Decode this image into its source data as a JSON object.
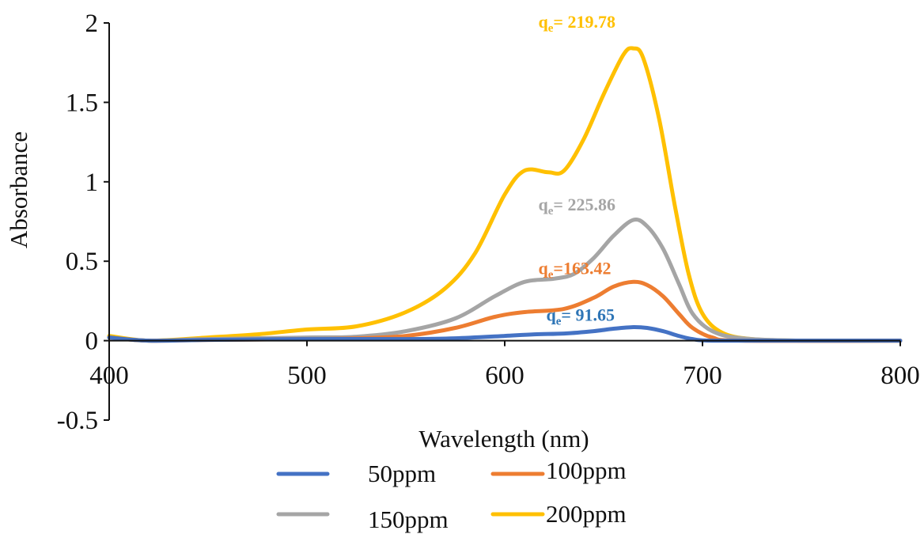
{
  "chart_data": {
    "type": "line",
    "title": "",
    "xlabel": "Wavelength (nm)",
    "ylabel": "Absorbance",
    "xlim": [
      400,
      800
    ],
    "ylim": [
      -0.5,
      2
    ],
    "xticks": [
      "400",
      "500",
      "600",
      "700",
      "800"
    ],
    "yticks": [
      "2",
      "1.5",
      "1",
      "0.5",
      "0",
      "-0.5"
    ],
    "legend_position": "bottom",
    "grid": false,
    "series": [
      {
        "name": "50ppm",
        "color": "#4472C4",
        "points": [
          [
            400,
            0.02
          ],
          [
            420,
            0.0
          ],
          [
            450,
            0.005
          ],
          [
            500,
            0.01
          ],
          [
            550,
            0.01
          ],
          [
            575,
            0.015
          ],
          [
            600,
            0.03
          ],
          [
            615,
            0.04
          ],
          [
            630,
            0.045
          ],
          [
            645,
            0.06
          ],
          [
            655,
            0.075
          ],
          [
            665,
            0.085
          ],
          [
            672,
            0.08
          ],
          [
            680,
            0.06
          ],
          [
            688,
            0.03
          ],
          [
            695,
            0.01
          ],
          [
            705,
            0.0
          ],
          [
            750,
            0.0
          ],
          [
            800,
            0.0
          ]
        ]
      },
      {
        "name": "100ppm",
        "color": "#ED7D31",
        "points": [
          [
            400,
            0.02
          ],
          [
            420,
            0.0
          ],
          [
            450,
            0.005
          ],
          [
            500,
            0.01
          ],
          [
            525,
            0.015
          ],
          [
            550,
            0.03
          ],
          [
            575,
            0.08
          ],
          [
            595,
            0.15
          ],
          [
            610,
            0.18
          ],
          [
            630,
            0.2
          ],
          [
            645,
            0.27
          ],
          [
            655,
            0.34
          ],
          [
            665,
            0.37
          ],
          [
            672,
            0.35
          ],
          [
            680,
            0.28
          ],
          [
            688,
            0.17
          ],
          [
            695,
            0.08
          ],
          [
            705,
            0.02
          ],
          [
            720,
            0.0
          ],
          [
            800,
            0.0
          ]
        ]
      },
      {
        "name": "150ppm",
        "color": "#A5A5A5",
        "points": [
          [
            400,
            0.02
          ],
          [
            420,
            0.0
          ],
          [
            450,
            0.01
          ],
          [
            500,
            0.02
          ],
          [
            525,
            0.025
          ],
          [
            550,
            0.06
          ],
          [
            575,
            0.14
          ],
          [
            595,
            0.28
          ],
          [
            610,
            0.37
          ],
          [
            625,
            0.39
          ],
          [
            635,
            0.42
          ],
          [
            645,
            0.52
          ],
          [
            655,
            0.66
          ],
          [
            665,
            0.76
          ],
          [
            672,
            0.72
          ],
          [
            680,
            0.58
          ],
          [
            688,
            0.36
          ],
          [
            695,
            0.17
          ],
          [
            705,
            0.06
          ],
          [
            720,
            0.015
          ],
          [
            750,
            0.0
          ],
          [
            800,
            0.0
          ]
        ]
      },
      {
        "name": "200ppm",
        "color": "#FFC000",
        "points": [
          [
            400,
            0.03
          ],
          [
            420,
            0.0
          ],
          [
            450,
            0.02
          ],
          [
            475,
            0.04
          ],
          [
            500,
            0.07
          ],
          [
            525,
            0.09
          ],
          [
            550,
            0.18
          ],
          [
            570,
            0.33
          ],
          [
            585,
            0.55
          ],
          [
            600,
            0.92
          ],
          [
            610,
            1.07
          ],
          [
            622,
            1.06
          ],
          [
            630,
            1.07
          ],
          [
            640,
            1.27
          ],
          [
            650,
            1.55
          ],
          [
            660,
            1.8
          ],
          [
            665,
            1.84
          ],
          [
            670,
            1.78
          ],
          [
            678,
            1.4
          ],
          [
            686,
            0.85
          ],
          [
            693,
            0.42
          ],
          [
            700,
            0.17
          ],
          [
            710,
            0.05
          ],
          [
            725,
            0.01
          ],
          [
            750,
            0.0
          ],
          [
            800,
            0.0
          ]
        ]
      }
    ],
    "annotations": [
      {
        "text": "q",
        "sub": "e",
        "rest": "= 219.78",
        "color": "#FFC000",
        "x": 665,
        "y": 1.84
      },
      {
        "text": "q",
        "sub": "e",
        "rest": "= 225.86",
        "color": "#A5A5A5",
        "x": 665,
        "y": 0.76
      },
      {
        "text": "q",
        "sub": "e",
        "rest": "=163.42",
        "color": "#ED7D31",
        "x": 665,
        "y": 0.37
      },
      {
        "text": "q",
        "sub": "e",
        "rest": "= 91.65",
        "color": "#2E75B6",
        "x": 665,
        "y": 0.085
      }
    ]
  }
}
